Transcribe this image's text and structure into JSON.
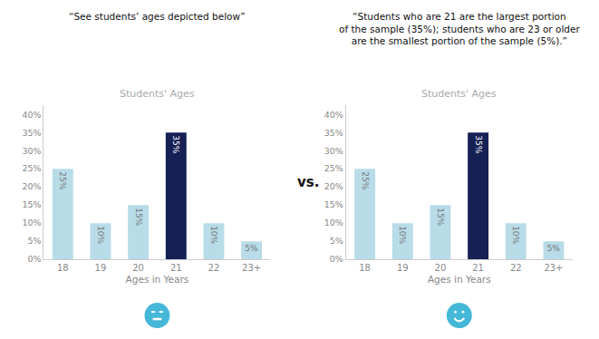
{
  "chart_data": [
    {
      "type": "bar",
      "title": "Students' Ages",
      "subtitle": "“See students’ ages depicted below”",
      "xlabel": "Ages in Years",
      "categories": [
        "18",
        "19",
        "20",
        "21",
        "22",
        "23+"
      ],
      "values": [
        0.25,
        0.1,
        0.15,
        0.35,
        0.1,
        0.05
      ],
      "value_labels": [
        "25%",
        "10%",
        "15%",
        "35%",
        "10%",
        "5%"
      ],
      "data_labels": true,
      "colors": [
        "#b8dce8",
        "#b8dce8",
        "#b8dce8",
        "#162055",
        "#b8dce8",
        "#b8dce8"
      ],
      "ylim": [
        0,
        0.425
      ],
      "yticks": [
        {
          "value": 0.0,
          "label": "0%"
        },
        {
          "value": 0.05,
          "label": "5%"
        },
        {
          "value": 0.1,
          "label": "10%"
        },
        {
          "value": 0.15,
          "label": "15%"
        },
        {
          "value": 0.2,
          "label": "20%"
        },
        {
          "value": 0.25,
          "label": "25%"
        },
        {
          "value": 0.3,
          "label": "30%"
        },
        {
          "value": 0.35,
          "label": "35%"
        },
        {
          "value": 0.4,
          "label": "40%"
        }
      ],
      "grid": false,
      "annotations": [
        "vs."
      ]
    },
    {
      "type": "bar",
      "title": "Students' Ages",
      "subtitle": "“Students who are 21 are the largest portion\nof the sample (35%); students who are 23 or older\nare the smallest portion of the sample (5%).”",
      "xlabel": "Ages in Years",
      "categories": [
        "18",
        "19",
        "20",
        "21",
        "22",
        "23+"
      ],
      "values": [
        0.25,
        0.1,
        0.15,
        0.35,
        0.1,
        0.05
      ],
      "value_labels": [
        "25%",
        "10%",
        "15%",
        "35%",
        "10%",
        "5%"
      ],
      "data_labels": true,
      "colors": [
        "#b8dce8",
        "#b8dce8",
        "#b8dce8",
        "#162055",
        "#b8dce8",
        "#b8dce8"
      ],
      "ylim": [
        0,
        0.425
      ],
      "yticks": [
        {
          "value": 0.0,
          "label": "0%"
        },
        {
          "value": 0.05,
          "label": "5%"
        },
        {
          "value": 0.1,
          "label": "10%"
        },
        {
          "value": 0.15,
          "label": "15%"
        },
        {
          "value": 0.2,
          "label": "20%"
        },
        {
          "value": 0.25,
          "label": "25%"
        },
        {
          "value": 0.3,
          "label": "30%"
        },
        {
          "value": 0.35,
          "label": "35%"
        },
        {
          "value": 0.4,
          "label": "40%"
        }
      ],
      "grid": false
    }
  ]
}
